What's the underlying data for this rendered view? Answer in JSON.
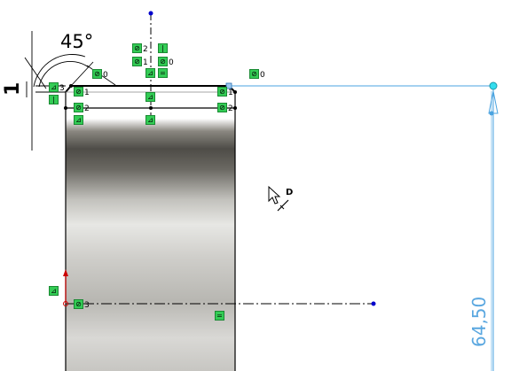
{
  "dimensions": {
    "angle": "45°",
    "chamfer": "1",
    "height": "64,50"
  },
  "cursor": {
    "label": "D"
  },
  "relations": [
    {
      "name": "coradial-relation-top-1",
      "sym": "⊘",
      "sub": "2"
    },
    {
      "name": "vertical-relation-top",
      "sym": "|",
      "sub": ""
    },
    {
      "name": "coradial-relation-top-2",
      "sym": "⊘",
      "sub": "1"
    },
    {
      "name": "coradial-relation-top-3",
      "sym": "⊘",
      "sub": "0"
    },
    {
      "name": "midpoint-relation",
      "sym": "⊿",
      "sub": ""
    },
    {
      "name": "equal-relation-top",
      "sym": "=",
      "sub": ""
    },
    {
      "name": "coradial-relation-left-0",
      "sym": "⊘",
      "sub": "0"
    },
    {
      "name": "coradial-relation-far",
      "sym": "⊘",
      "sub": "0"
    },
    {
      "name": "horizontal-relation-chamfer",
      "sym": "⊿",
      "sub": "3"
    },
    {
      "name": "vertical-relation-left",
      "sym": "|",
      "sub": ""
    },
    {
      "name": "coradial-relation-left-1",
      "sym": "⊘",
      "sub": "1"
    },
    {
      "name": "coradial-relation-right-1",
      "sym": "⊘",
      "sub": "1"
    },
    {
      "name": "coradial-relation-left-2",
      "sym": "⊘",
      "sub": "2"
    },
    {
      "name": "coradial-relation-right-2",
      "sym": "⊘",
      "sub": "2"
    },
    {
      "name": "midpoint-relation-center",
      "sym": "⊿",
      "sub": ""
    },
    {
      "name": "midpoint-relation-lower",
      "sym": "⊿",
      "sub": ""
    },
    {
      "name": "midpoint-relation-left-low",
      "sym": "⊿",
      "sub": ""
    },
    {
      "name": "midpoint-relation-left-bottom",
      "sym": "⊿",
      "sub": ""
    },
    {
      "name": "coradial-relation-bottom-3",
      "sym": "⊘",
      "sub": "3"
    },
    {
      "name": "equal-relation-bottom",
      "sym": "=",
      "sub": ""
    }
  ]
}
